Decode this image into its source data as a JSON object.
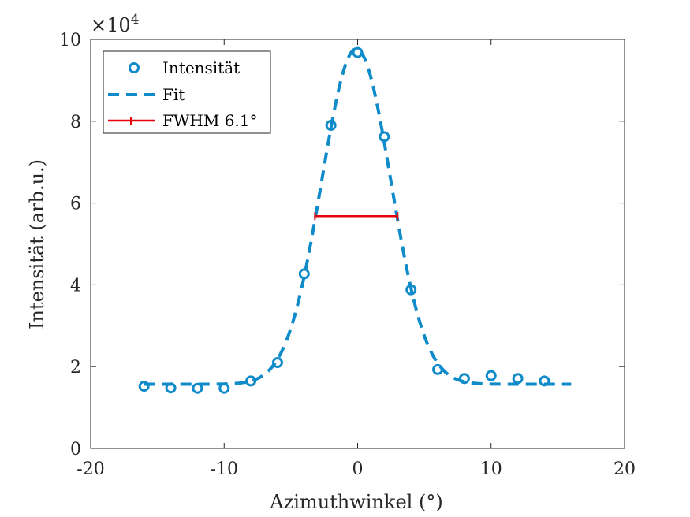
{
  "chart_data": {
    "type": "line",
    "xlabel": "Azimuthwinkel (°)",
    "ylabel": "Intensität (arb.u.)",
    "xlim": [
      -20,
      20
    ],
    "ylim": [
      0,
      10
    ],
    "xticks": [
      "-20",
      "-10",
      "0",
      "10",
      "20"
    ],
    "yticks": [
      "0",
      "2",
      "4",
      "6",
      "8",
      "10"
    ],
    "y_multiplier": {
      "base": "×10",
      "exponent": "4"
    },
    "grid": false,
    "legend_position": "top-left",
    "series": [
      {
        "name": "Intensität",
        "style": "markers",
        "color": "#0f8bca",
        "x": [
          -16,
          -14,
          -12,
          -10,
          -8,
          -6,
          -4,
          -2,
          0,
          2,
          4,
          6,
          8,
          10,
          12,
          14
        ],
        "y": [
          1.52,
          1.48,
          1.47,
          1.47,
          1.65,
          2.1,
          4.27,
          7.9,
          9.68,
          7.62,
          3.88,
          1.93,
          1.71,
          1.78,
          1.71,
          1.65
        ]
      },
      {
        "name": "Fit",
        "style": "dashed",
        "color": "#0f8bca",
        "model": "gaussian",
        "baseline": 1.57,
        "amplitude": 8.2,
        "center": -0.1,
        "fwhm": 6.1,
        "x_range": [
          -16,
          16
        ]
      },
      {
        "name": "FWHM 6.1°",
        "style": "errorbar-line",
        "color": "#e8000b",
        "x": [
          -3.2,
          3.0
        ],
        "y": [
          5.68,
          5.68
        ]
      }
    ]
  }
}
